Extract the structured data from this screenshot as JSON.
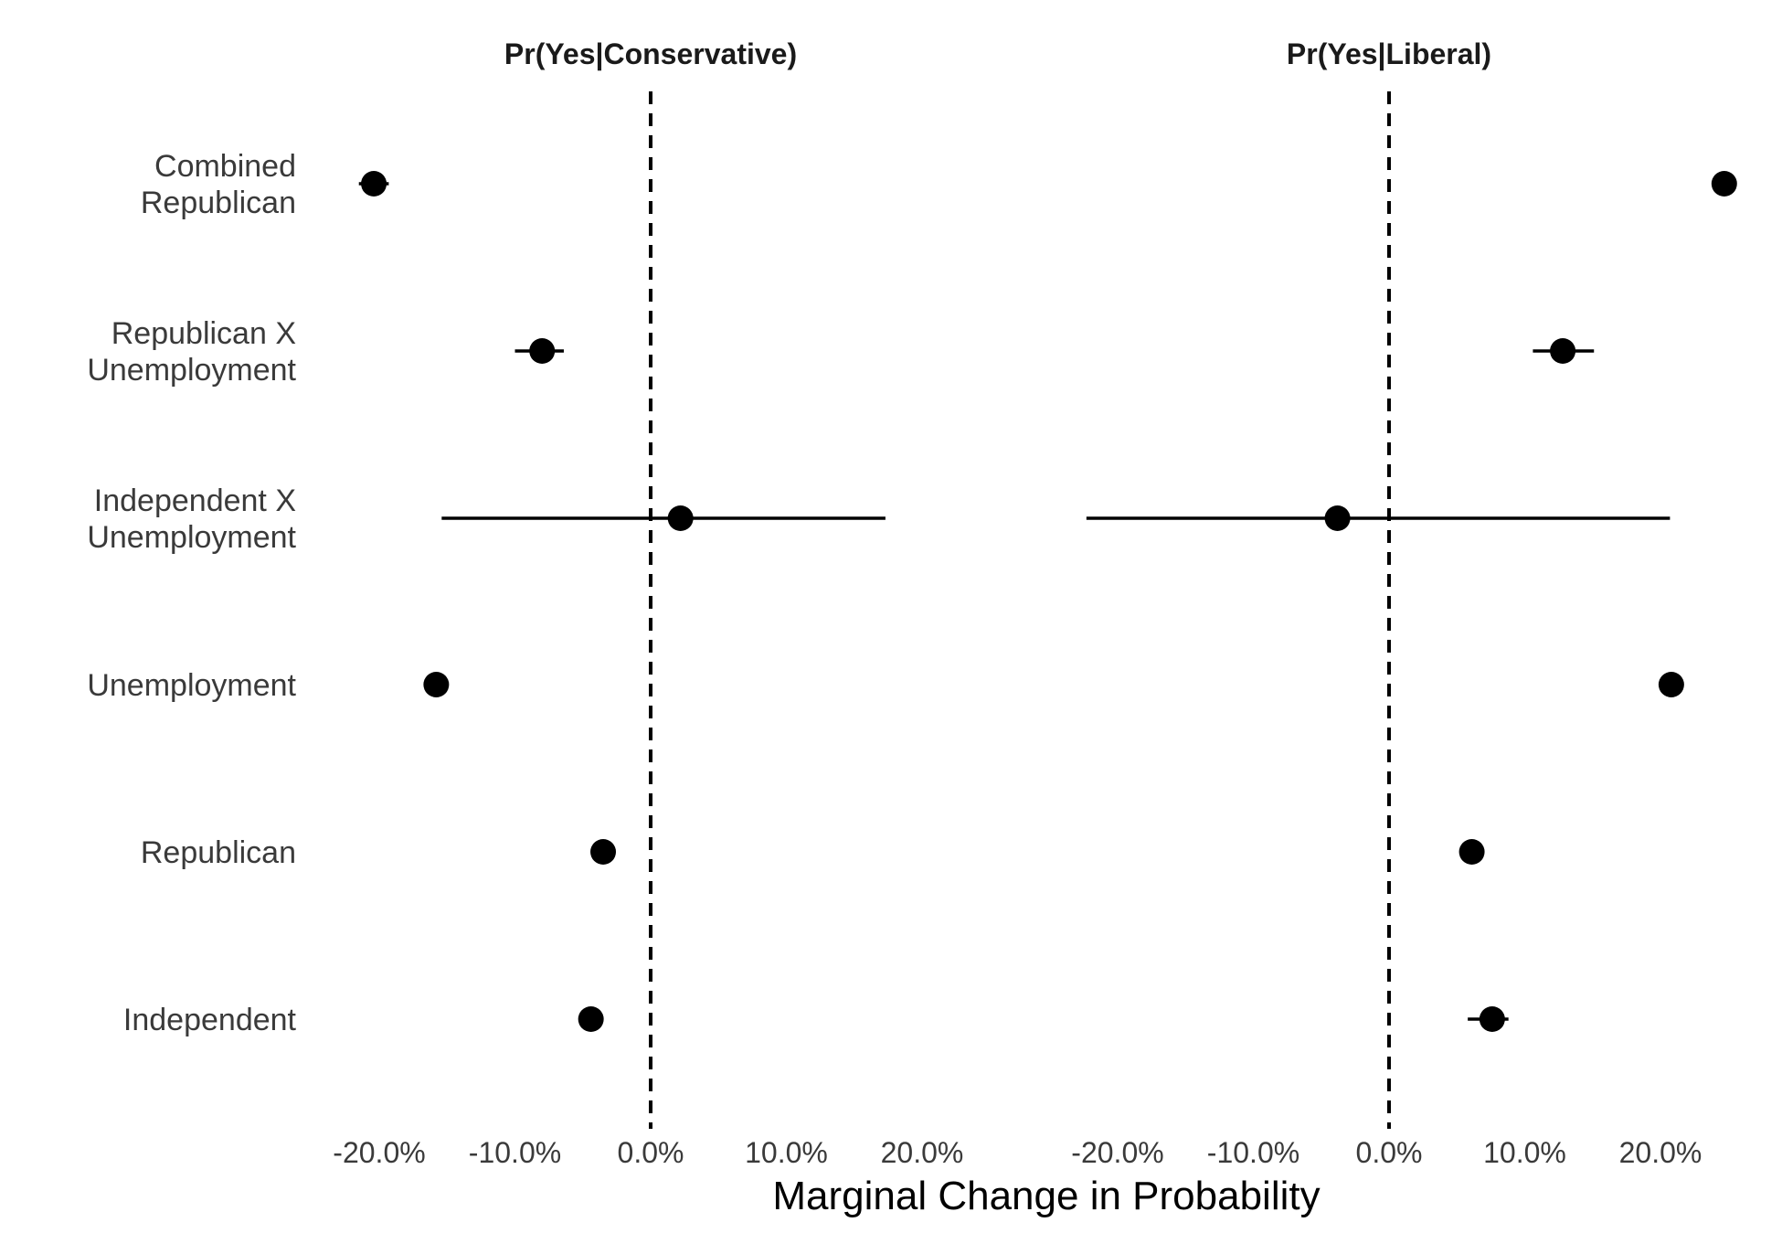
{
  "chart_data": {
    "type": "scatter",
    "title": "",
    "xlabel": "Marginal Change in Probability",
    "ylabel": "",
    "grid": false,
    "legend": "none",
    "colors": {
      "point": "#000000",
      "reference_line": "#000000"
    },
    "reference_line_x": 0,
    "categories": [
      "Combined\nRepublican",
      "Republican X\nUnemployment",
      "Independent X\nUnemployment",
      "Unemployment",
      "Republican",
      "Independent"
    ],
    "panels": [
      {
        "title": "Pr(Yes|Conservative)",
        "xlim": [
          -0.25,
          0.25
        ],
        "ticks": [
          -0.2,
          -0.1,
          0.0,
          0.1,
          0.2
        ],
        "tick_labels": [
          "-20.0%",
          "-10.0%",
          "0.0%",
          "10.0%",
          "20.0%"
        ],
        "points": [
          {
            "estimate": -0.204,
            "lower": -0.215,
            "upper": -0.193
          },
          {
            "estimate": -0.08,
            "lower": -0.1,
            "upper": -0.064
          },
          {
            "estimate": 0.022,
            "lower": -0.154,
            "upper": 0.173
          },
          {
            "estimate": -0.158,
            "lower": -0.163,
            "upper": -0.153
          },
          {
            "estimate": -0.035,
            "lower": -0.039,
            "upper": -0.031
          },
          {
            "estimate": -0.044,
            "lower": -0.051,
            "upper": -0.037
          }
        ]
      },
      {
        "title": "Pr(Yes|Liberal)",
        "xlim": [
          -0.25,
          0.25
        ],
        "ticks": [
          -0.2,
          -0.1,
          0.0,
          0.1,
          0.2
        ],
        "tick_labels": [
          "-20.0%",
          "-10.0%",
          "0.0%",
          "10.0%",
          "20.0%"
        ],
        "points": [
          {
            "estimate": 0.247,
            "lower": 0.239,
            "upper": 0.251
          },
          {
            "estimate": 0.128,
            "lower": 0.106,
            "upper": 0.151
          },
          {
            "estimate": -0.038,
            "lower": -0.223,
            "upper": 0.207
          },
          {
            "estimate": 0.208,
            "lower": 0.203,
            "upper": 0.213
          },
          {
            "estimate": 0.061,
            "lower": 0.057,
            "upper": 0.065
          },
          {
            "estimate": 0.076,
            "lower": 0.058,
            "upper": 0.088
          }
        ]
      }
    ]
  }
}
